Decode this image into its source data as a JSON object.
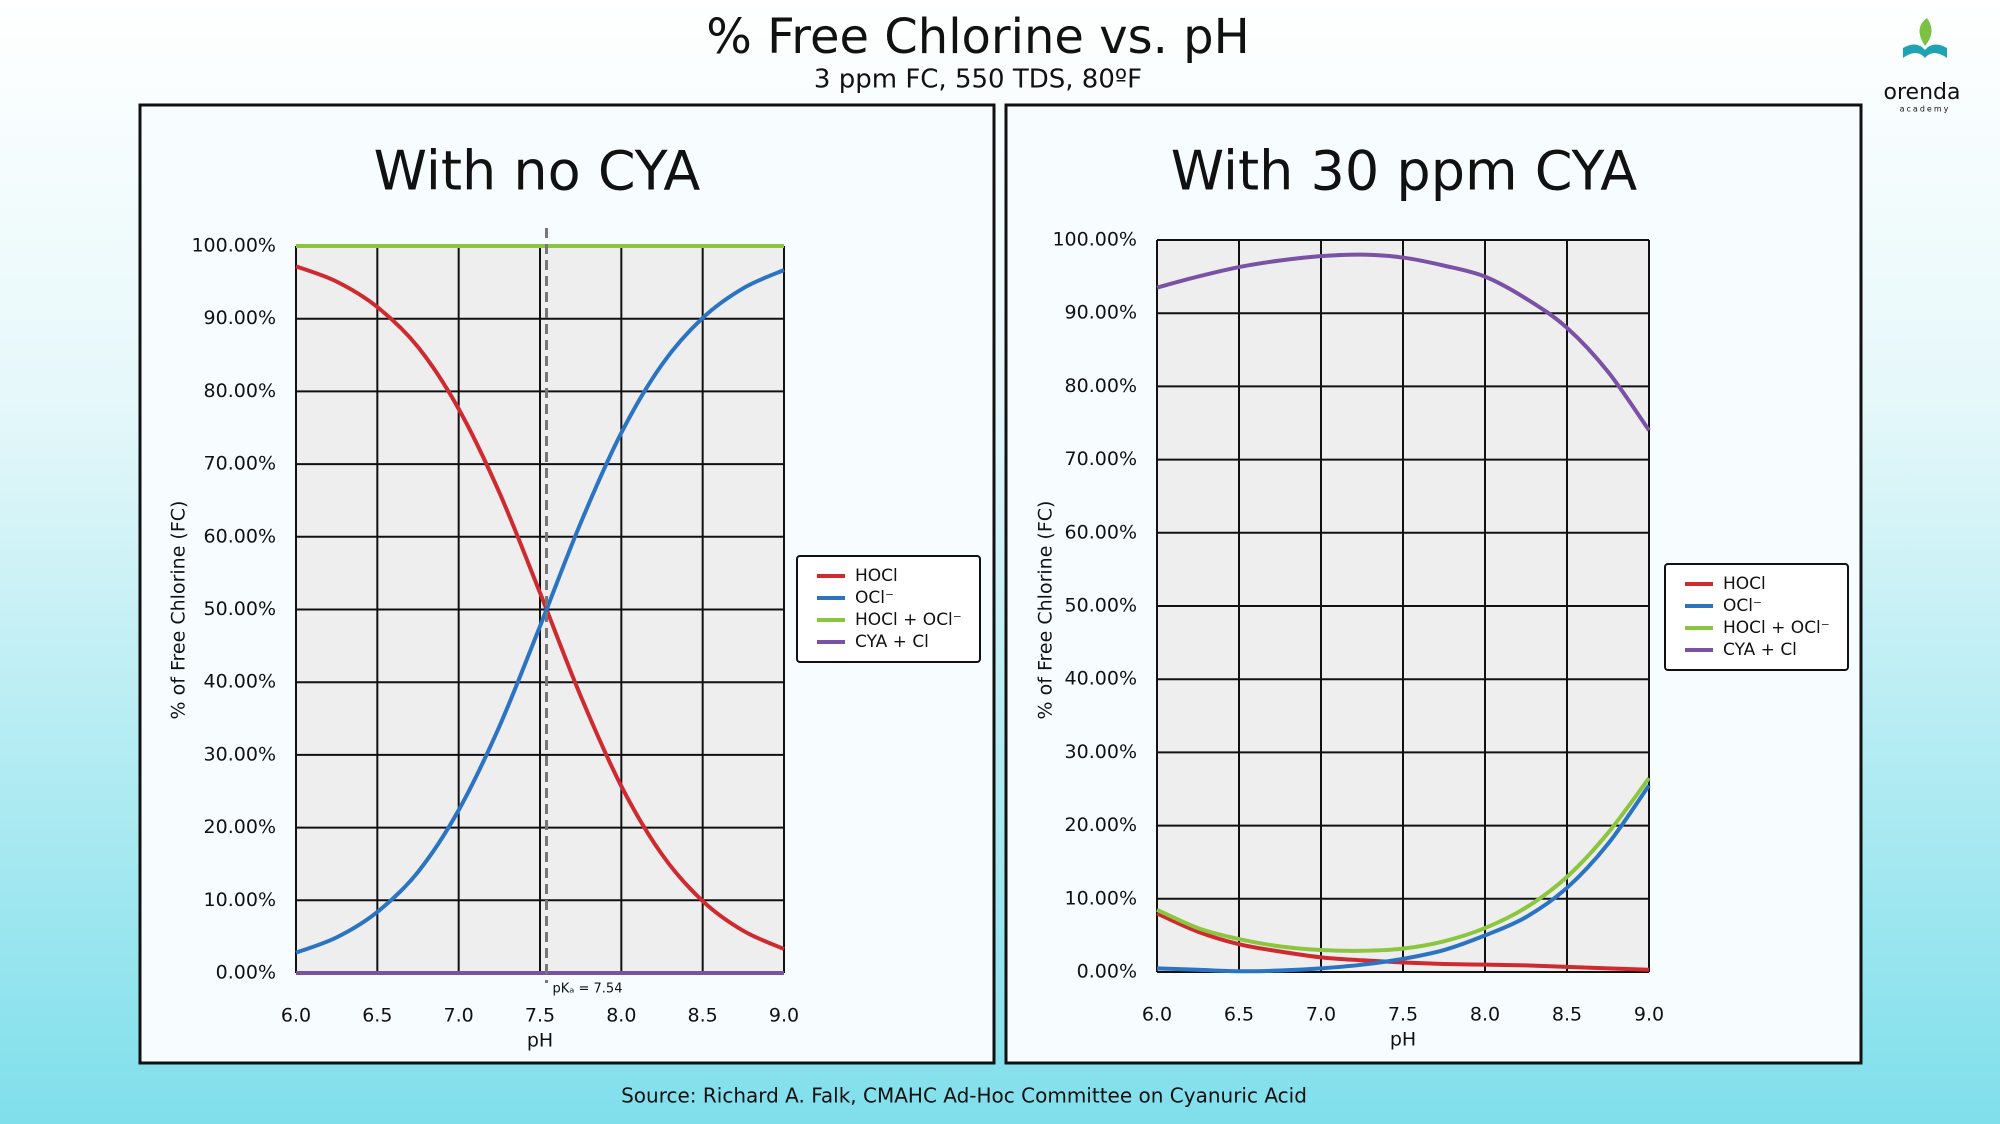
{
  "header": {
    "title": "% Free Chlorine vs. pH",
    "subtitle": "3 ppm FC, 550 TDS, 80ºF"
  },
  "logo": {
    "name": "orenda",
    "tagline": "academy"
  },
  "footer": {
    "source": "Source:  Richard A. Falk, CMAHC Ad-Hoc Committee on Cyanuric Acid"
  },
  "chart_data": [
    {
      "type": "line",
      "title": "With no CYA",
      "xlabel": "pH",
      "ylabel": "% of Free Chlorine (FC)",
      "x": [
        6.0,
        6.25,
        6.5,
        6.75,
        7.0,
        7.25,
        7.5,
        7.75,
        8.0,
        8.25,
        8.5,
        8.75,
        9.0
      ],
      "xlim": [
        6,
        9
      ],
      "xticks": [
        {
          "value": 6,
          "label": "6.0"
        },
        {
          "value": 6.5,
          "label": "6.5"
        },
        {
          "value": 7,
          "label": "7.0"
        },
        {
          "value": 7.5,
          "label": "7.5"
        },
        {
          "value": 8,
          "label": "8.0"
        },
        {
          "value": 8.5,
          "label": "8.5"
        },
        {
          "value": 9,
          "label": "9.0"
        }
      ],
      "ylim": [
        0,
        100
      ],
      "yticks": [
        {
          "value": 0,
          "label": "0.00%"
        },
        {
          "value": 10,
          "label": "10.00%"
        },
        {
          "value": 20,
          "label": "20.00%"
        },
        {
          "value": 30,
          "label": "30.00%"
        },
        {
          "value": 40,
          "label": "40.00%"
        },
        {
          "value": 50,
          "label": "50.00%"
        },
        {
          "value": 60,
          "label": "60.00%"
        },
        {
          "value": 70,
          "label": "70.00%"
        },
        {
          "value": 80,
          "label": "80.00%"
        },
        {
          "value": 90,
          "label": "90.00%"
        },
        {
          "value": 100,
          "label": "100.00%"
        }
      ],
      "grid": true,
      "legend": "right",
      "series": [
        {
          "name": "HOCl",
          "color": "#cf2a2f",
          "values": [
            97.2,
            95.1,
            91.6,
            86.1,
            77.6,
            66.1,
            52.3,
            38.1,
            25.7,
            16.3,
            9.9,
            5.8,
            3.3
          ]
        },
        {
          "name": "OCl⁻",
          "color": "#2b74c3",
          "values": [
            2.8,
            4.9,
            8.4,
            13.9,
            22.4,
            33.9,
            47.7,
            61.9,
            74.3,
            83.7,
            90.1,
            94.2,
            96.7
          ]
        },
        {
          "name": "HOCl + OCl⁻",
          "color": "#8cc63f",
          "values": [
            100,
            100,
            100,
            100,
            100,
            100,
            100,
            100,
            100,
            100,
            100,
            100,
            100
          ]
        },
        {
          "name": "CYA + Cl",
          "color": "#7a52a5",
          "values": [
            0,
            0,
            0,
            0,
            0,
            0,
            0,
            0,
            0,
            0,
            0,
            0,
            0
          ]
        }
      ],
      "annotations": [
        {
          "text": "pKₐ = 7.54",
          "x": 7.54
        }
      ]
    },
    {
      "type": "line",
      "title": "With 30 ppm CYA",
      "xlabel": "pH",
      "ylabel": "% of  Free Chlorine (FC)",
      "x": [
        6.0,
        6.25,
        6.5,
        6.75,
        7.0,
        7.25,
        7.5,
        7.75,
        8.0,
        8.25,
        8.5,
        8.75,
        9.0
      ],
      "xlim": [
        6,
        9
      ],
      "xticks": [
        {
          "value": 6,
          "label": "6.0"
        },
        {
          "value": 6.5,
          "label": "6.5"
        },
        {
          "value": 7,
          "label": "7.0"
        },
        {
          "value": 7.5,
          "label": "7.5"
        },
        {
          "value": 8,
          "label": "8.0"
        },
        {
          "value": 8.5,
          "label": "8.5"
        },
        {
          "value": 9,
          "label": "9.0"
        }
      ],
      "ylim": [
        0,
        100
      ],
      "yticks": [
        {
          "value": 0,
          "label": "0.00%"
        },
        {
          "value": 10,
          "label": "10.00%"
        },
        {
          "value": 20,
          "label": "20.00%"
        },
        {
          "value": 30,
          "label": "30.00%"
        },
        {
          "value": 40,
          "label": "40.00%"
        },
        {
          "value": 50,
          "label": "50.00%"
        },
        {
          "value": 60,
          "label": "60.00%"
        },
        {
          "value": 70,
          "label": "70.00%"
        },
        {
          "value": 80,
          "label": "80.00%"
        },
        {
          "value": 90,
          "label": "90.00%"
        },
        {
          "value": 100,
          "label": "100.00%"
        }
      ],
      "grid": true,
      "legend": "right",
      "series": [
        {
          "name": "HOCl",
          "color": "#cf2a2f",
          "values": [
            8,
            5.5,
            3.8,
            2.8,
            2.0,
            1.6,
            1.3,
            1.1,
            1.0,
            0.9,
            0.7,
            0.5,
            0.3
          ]
        },
        {
          "name": "OCl⁻",
          "color": "#2b74c3",
          "values": [
            0.5,
            0.3,
            0.1,
            0.2,
            0.5,
            1.0,
            1.8,
            3.0,
            5.0,
            7.5,
            11.5,
            17.5,
            25.5
          ]
        },
        {
          "name": "HOCl + OCl⁻",
          "color": "#8cc63f",
          "values": [
            8.5,
            6,
            4.5,
            3.5,
            3.0,
            2.9,
            3.2,
            4.2,
            6.0,
            8.8,
            13,
            19,
            26.5
          ]
        },
        {
          "name": "CYA + Cl",
          "color": "#7a52a5",
          "values": [
            93.5,
            95,
            96.3,
            97.2,
            97.8,
            98,
            97.6,
            96.5,
            95,
            92,
            88,
            82,
            74
          ]
        }
      ]
    }
  ]
}
